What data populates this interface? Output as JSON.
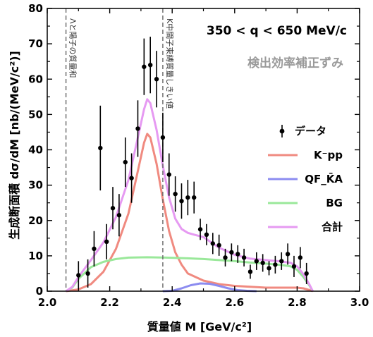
{
  "chart_data": {
    "type": "scatter",
    "xlabel": "質量値 M [GeV/c²]",
    "ylabel": "生成断面積 dσ/dM [nb/(MeV/c²)]",
    "xlim": [
      2.0,
      3.0
    ],
    "ylim": [
      0,
      80
    ],
    "xticks": [
      "2.0",
      "2.2",
      "2.4",
      "2.6",
      "2.8",
      "3.0"
    ],
    "yticks": [
      "0",
      "10",
      "20",
      "30",
      "40",
      "50",
      "60",
      "70",
      "80"
    ],
    "grid": false,
    "legend_position": "right",
    "annotations": {
      "range": "350 < q < 650 MeV/c",
      "correction": "検出効率補正ずみ"
    },
    "vertical_lines": [
      {
        "x": 2.06,
        "label": "Λと陽子の質量和"
      },
      {
        "x": 2.37,
        "label": "K中間子束縛質量しきい値"
      }
    ],
    "series": [
      {
        "name": "データ",
        "kind": "points",
        "color": "#000000",
        "points": [
          {
            "x": 2.1,
            "y": 4.5,
            "err": 4.0
          },
          {
            "x": 2.13,
            "y": 5.0,
            "err": 4.0
          },
          {
            "x": 2.15,
            "y": 12.0,
            "err": 5.0
          },
          {
            "x": 2.17,
            "y": 40.5,
            "err": 12.0
          },
          {
            "x": 2.19,
            "y": 14.0,
            "err": 5.0
          },
          {
            "x": 2.21,
            "y": 23.5,
            "err": 6.0
          },
          {
            "x": 2.23,
            "y": 21.5,
            "err": 6.0
          },
          {
            "x": 2.25,
            "y": 36.5,
            "err": 7.0
          },
          {
            "x": 2.27,
            "y": 32.0,
            "err": 7.0
          },
          {
            "x": 2.29,
            "y": 46.0,
            "err": 8.0
          },
          {
            "x": 2.31,
            "y": 63.5,
            "err": 8.0
          },
          {
            "x": 2.33,
            "y": 64.0,
            "err": 8.0
          },
          {
            "x": 2.35,
            "y": 60.0,
            "err": 8.0
          },
          {
            "x": 2.37,
            "y": 43.5,
            "err": 7.0
          },
          {
            "x": 2.39,
            "y": 33.0,
            "err": 6.0
          },
          {
            "x": 2.41,
            "y": 27.5,
            "err": 5.0
          },
          {
            "x": 2.43,
            "y": 25.5,
            "err": 5.0
          },
          {
            "x": 2.45,
            "y": 26.5,
            "err": 5.0
          },
          {
            "x": 2.47,
            "y": 26.5,
            "err": 4.5
          },
          {
            "x": 2.49,
            "y": 17.5,
            "err": 3.0
          },
          {
            "x": 2.51,
            "y": 16.0,
            "err": 3.0
          },
          {
            "x": 2.53,
            "y": 13.5,
            "err": 3.0
          },
          {
            "x": 2.55,
            "y": 13.0,
            "err": 3.0
          },
          {
            "x": 2.57,
            "y": 9.5,
            "err": 2.5
          },
          {
            "x": 2.59,
            "y": 11.0,
            "err": 2.5
          },
          {
            "x": 2.61,
            "y": 10.5,
            "err": 2.5
          },
          {
            "x": 2.63,
            "y": 9.5,
            "err": 2.5
          },
          {
            "x": 2.65,
            "y": 5.5,
            "err": 2.0
          },
          {
            "x": 2.67,
            "y": 8.5,
            "err": 2.5
          },
          {
            "x": 2.69,
            "y": 8.0,
            "err": 2.5
          },
          {
            "x": 2.71,
            "y": 6.5,
            "err": 2.0
          },
          {
            "x": 2.73,
            "y": 7.5,
            "err": 2.5
          },
          {
            "x": 2.75,
            "y": 8.5,
            "err": 2.5
          },
          {
            "x": 2.77,
            "y": 10.5,
            "err": 3.0
          },
          {
            "x": 2.79,
            "y": 7.0,
            "err": 3.0
          },
          {
            "x": 2.81,
            "y": 9.5,
            "err": 3.0
          },
          {
            "x": 2.83,
            "y": 5.0,
            "err": 3.0
          }
        ]
      },
      {
        "name": "K⁻pp",
        "kind": "line",
        "color": "#f08a80",
        "points": [
          [
            2.06,
            0
          ],
          [
            2.1,
            0.5
          ],
          [
            2.14,
            2
          ],
          [
            2.18,
            5.5
          ],
          [
            2.22,
            12
          ],
          [
            2.26,
            22
          ],
          [
            2.29,
            34
          ],
          [
            2.31,
            42
          ],
          [
            2.32,
            44.5
          ],
          [
            2.33,
            43.5
          ],
          [
            2.35,
            36
          ],
          [
            2.37,
            26
          ],
          [
            2.39,
            17
          ],
          [
            2.41,
            11
          ],
          [
            2.43,
            7.5
          ],
          [
            2.45,
            5
          ],
          [
            2.5,
            3
          ],
          [
            2.55,
            2
          ],
          [
            2.6,
            1.5
          ],
          [
            2.7,
            1
          ],
          [
            2.8,
            1
          ],
          [
            2.82,
            0.8
          ],
          [
            2.84,
            0.3
          ],
          [
            2.85,
            0
          ]
        ]
      },
      {
        "name": "QF_K̄A",
        "kind": "line",
        "color": "#8c8cf0",
        "points": [
          [
            2.37,
            0
          ],
          [
            2.4,
            0.1
          ],
          [
            2.43,
            0.8
          ],
          [
            2.46,
            1.7
          ],
          [
            2.49,
            2.2
          ],
          [
            2.52,
            2.1
          ],
          [
            2.55,
            1.5
          ],
          [
            2.58,
            0.8
          ],
          [
            2.61,
            0.3
          ],
          [
            2.64,
            0.1
          ],
          [
            2.67,
            0
          ]
        ]
      },
      {
        "name": "BG",
        "kind": "line",
        "color": "#9ae89a",
        "points": [
          [
            2.06,
            0
          ],
          [
            2.08,
            1
          ],
          [
            2.1,
            3.5
          ],
          [
            2.14,
            6.8
          ],
          [
            2.18,
            8.3
          ],
          [
            2.22,
            9.1
          ],
          [
            2.26,
            9.5
          ],
          [
            2.32,
            9.6
          ],
          [
            2.38,
            9.5
          ],
          [
            2.45,
            9.3
          ],
          [
            2.5,
            9.1
          ],
          [
            2.55,
            8.8
          ],
          [
            2.6,
            8.5
          ],
          [
            2.65,
            8.1
          ],
          [
            2.7,
            7.8
          ],
          [
            2.75,
            7.4
          ],
          [
            2.78,
            7.0
          ],
          [
            2.8,
            6.0
          ],
          [
            2.82,
            4.0
          ],
          [
            2.84,
            1.5
          ],
          [
            2.85,
            0
          ]
        ]
      },
      {
        "name": "合計",
        "kind": "line",
        "color": "#e69af2",
        "points": [
          [
            2.06,
            0
          ],
          [
            2.08,
            1.2
          ],
          [
            2.1,
            4
          ],
          [
            2.14,
            8.8
          ],
          [
            2.18,
            13.8
          ],
          [
            2.22,
            21
          ],
          [
            2.26,
            31.5
          ],
          [
            2.29,
            43.5
          ],
          [
            2.31,
            51.5
          ],
          [
            2.32,
            54.3
          ],
          [
            2.33,
            53.2
          ],
          [
            2.35,
            45.6
          ],
          [
            2.37,
            35.5
          ],
          [
            2.39,
            26.5
          ],
          [
            2.41,
            20.5
          ],
          [
            2.43,
            17.6
          ],
          [
            2.45,
            16.5
          ],
          [
            2.47,
            16
          ],
          [
            2.5,
            15.3
          ],
          [
            2.55,
            12.3
          ],
          [
            2.6,
            10.3
          ],
          [
            2.65,
            9.2
          ],
          [
            2.7,
            8.8
          ],
          [
            2.75,
            8.4
          ],
          [
            2.78,
            8.0
          ],
          [
            2.8,
            7.0
          ],
          [
            2.82,
            4.8
          ],
          [
            2.84,
            1.8
          ],
          [
            2.85,
            0
          ]
        ]
      }
    ]
  }
}
